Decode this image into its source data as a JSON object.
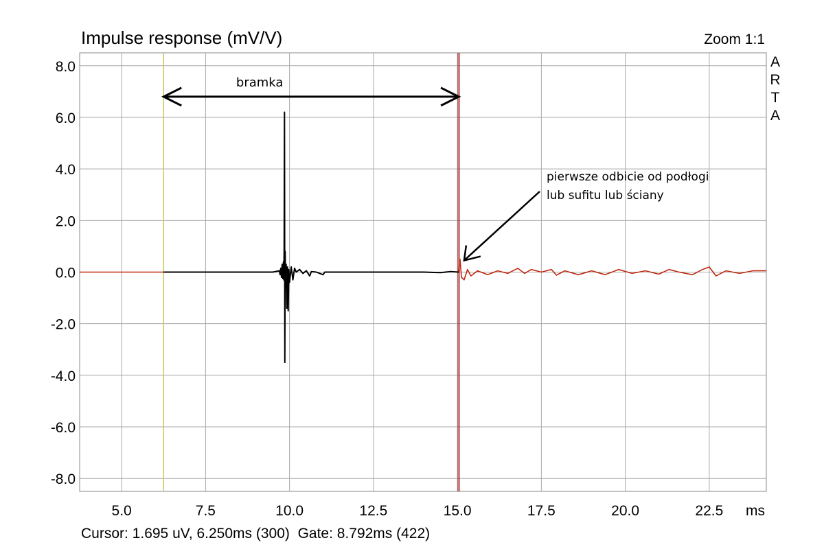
{
  "header": {
    "title": "Impulse response (mV/V)",
    "zoom": "Zoom 1:1",
    "brand_letters": [
      "A",
      "R",
      "T",
      "A"
    ]
  },
  "status": {
    "text": "Cursor: 1.695 uV, 6.250ms (300)  Gate: 8.792ms (422)"
  },
  "colors": {
    "in_gate": "#000000",
    "out_gate": "#c0280f",
    "gate_start_marker": "#c8c85a",
    "gate_end_marker": "#a01010",
    "grid": "#a8a8a8"
  },
  "annotations": {
    "gate_label": "bramka",
    "reflection_line1": "pierwsze odbicie od podłogi",
    "reflection_line2": "lub sufitu lub ściany"
  },
  "chart_data": {
    "type": "line",
    "title": "Impulse response (mV/V)",
    "xlabel": "ms",
    "ylabel": "",
    "xlim": [
      3.75,
      24.2
    ],
    "ylim": [
      -8.5,
      8.5
    ],
    "x_ticks": [
      5.0,
      7.5,
      10.0,
      12.5,
      15.0,
      17.5,
      20.0,
      22.5
    ],
    "x_tick_labels": [
      "5.0",
      "7.5",
      "10.0",
      "12.5",
      "15.0",
      "17.5",
      "20.0",
      "22.5"
    ],
    "y_ticks": [
      8.0,
      6.0,
      4.0,
      2.0,
      0.0,
      -2.0,
      -4.0,
      -6.0,
      -8.0
    ],
    "y_tick_labels": [
      "8.0",
      "6.0",
      "4.0",
      "2.0",
      "0.0",
      "-2.0",
      "-4.0",
      "-6.0",
      "-8.0"
    ],
    "grid": true,
    "gate_start_ms": 6.25,
    "gate_end_ms": 15.04,
    "gate_arrow_y": 6.8,
    "series": [
      {
        "segment": "pre-gate",
        "points": [
          [
            3.75,
            0.0
          ],
          [
            6.25,
            0.0
          ]
        ]
      },
      {
        "segment": "in-gate",
        "points": [
          [
            6.25,
            0.0
          ],
          [
            9.5,
            0.0
          ],
          [
            9.7,
            0.05
          ],
          [
            9.72,
            -0.1
          ],
          [
            9.74,
            0.15
          ],
          [
            9.76,
            -0.2
          ],
          [
            9.78,
            0.3
          ],
          [
            9.8,
            -0.25
          ],
          [
            9.82,
            0.4
          ],
          [
            9.83,
            -0.3
          ],
          [
            9.84,
            0.9
          ],
          [
            9.85,
            6.2
          ],
          [
            9.86,
            -3.5
          ],
          [
            9.87,
            0.8
          ],
          [
            9.88,
            -0.6
          ],
          [
            9.9,
            0.3
          ],
          [
            9.92,
            -1.4
          ],
          [
            9.94,
            0.2
          ],
          [
            9.96,
            -1.5
          ],
          [
            9.98,
            0.1
          ],
          [
            10.0,
            -0.4
          ],
          [
            10.05,
            0.2
          ],
          [
            10.1,
            -0.3
          ],
          [
            10.15,
            0.15
          ],
          [
            10.2,
            0.0
          ],
          [
            10.3,
            0.1
          ],
          [
            10.4,
            -0.05
          ],
          [
            10.5,
            0.05
          ],
          [
            10.6,
            -0.15
          ],
          [
            10.65,
            0.02
          ],
          [
            10.8,
            0.0
          ],
          [
            11.0,
            -0.1
          ],
          [
            11.05,
            0.0
          ],
          [
            12.0,
            0.0
          ],
          [
            13.0,
            0.0
          ],
          [
            14.0,
            0.0
          ],
          [
            14.5,
            -0.02
          ],
          [
            14.8,
            0.02
          ],
          [
            15.04,
            0.0
          ]
        ]
      },
      {
        "segment": "post-gate",
        "points": [
          [
            15.04,
            0.0
          ],
          [
            15.08,
            0.5
          ],
          [
            15.12,
            -0.2
          ],
          [
            15.2,
            -0.3
          ],
          [
            15.3,
            0.1
          ],
          [
            15.4,
            -0.15
          ],
          [
            15.6,
            0.05
          ],
          [
            15.9,
            -0.1
          ],
          [
            16.2,
            0.05
          ],
          [
            16.5,
            -0.05
          ],
          [
            16.8,
            0.15
          ],
          [
            17.0,
            -0.05
          ],
          [
            17.2,
            0.1
          ],
          [
            17.5,
            0.0
          ],
          [
            17.8,
            0.1
          ],
          [
            17.95,
            -0.12
          ],
          [
            18.2,
            0.05
          ],
          [
            18.6,
            -0.1
          ],
          [
            19.0,
            0.05
          ],
          [
            19.4,
            -0.1
          ],
          [
            19.8,
            0.1
          ],
          [
            20.2,
            -0.05
          ],
          [
            20.6,
            0.05
          ],
          [
            21.0,
            -0.08
          ],
          [
            21.3,
            0.1
          ],
          [
            21.6,
            0.0
          ],
          [
            22.0,
            -0.1
          ],
          [
            22.3,
            0.1
          ],
          [
            22.5,
            0.2
          ],
          [
            22.7,
            -0.15
          ],
          [
            23.0,
            0.05
          ],
          [
            23.4,
            -0.05
          ],
          [
            23.8,
            0.05
          ],
          [
            24.2,
            0.05
          ]
        ]
      }
    ]
  }
}
